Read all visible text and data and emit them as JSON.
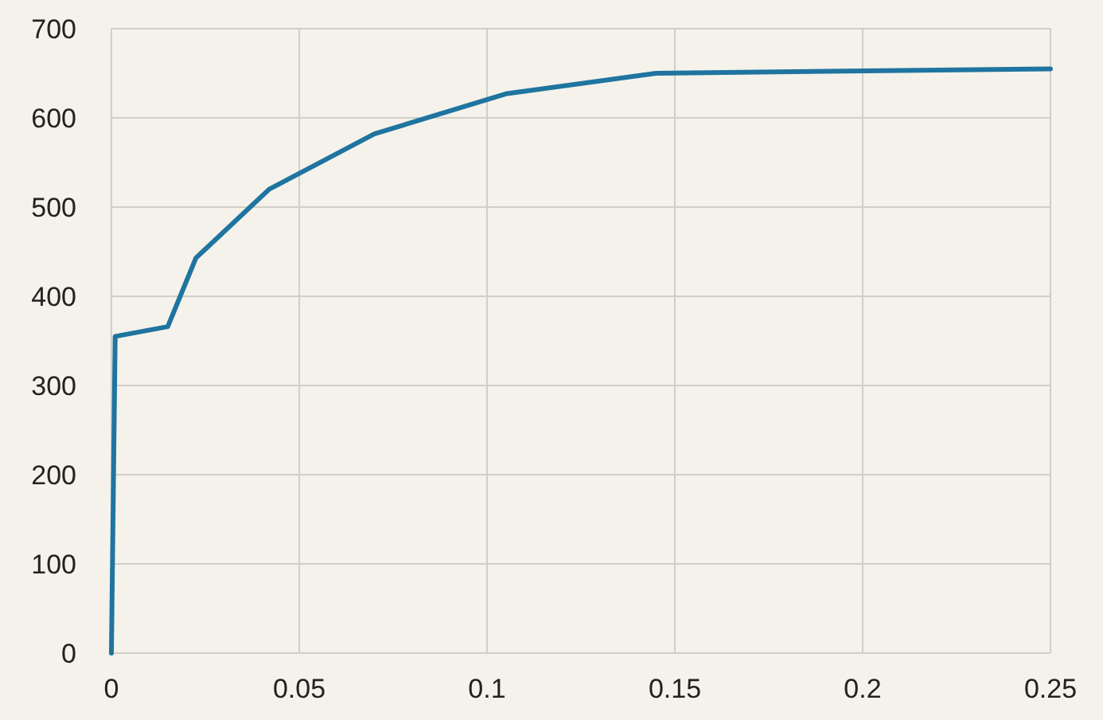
{
  "chart_data": {
    "type": "line",
    "x": [
      0,
      0.001,
      0.015,
      0.0225,
      0.042,
      0.07,
      0.105,
      0.145,
      0.25
    ],
    "series": [
      {
        "color": "#1f74a0",
        "values": [
          0,
          355,
          366,
          443,
          520,
          582,
          627,
          650,
          655
        ]
      }
    ],
    "xlim": [
      0,
      0.25
    ],
    "xticks": [
      0,
      0.05,
      0.1,
      0.15,
      0.2,
      0.25
    ],
    "ylim": [
      0,
      700
    ],
    "yticks": [
      0,
      100,
      200,
      300,
      400,
      500,
      600,
      700
    ],
    "grid": true,
    "marker": "none",
    "line_style": "solid"
  }
}
